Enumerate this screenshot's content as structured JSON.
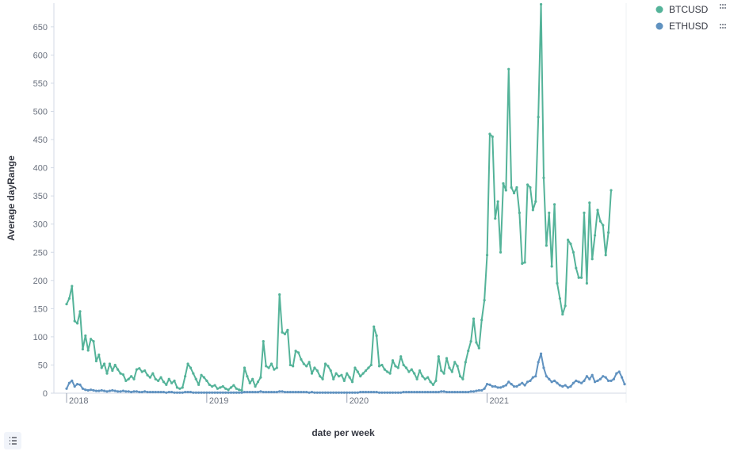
{
  "chart_data": {
    "type": "line",
    "x_label": "date per week",
    "y_label": "Average dayRange",
    "categories": [
      "2018",
      null,
      null,
      null,
      null,
      null,
      null,
      null,
      null,
      null,
      null,
      null,
      null,
      null,
      null,
      null,
      null,
      null,
      null,
      null,
      null,
      null,
      null,
      null,
      null,
      null,
      null,
      null,
      null,
      null,
      null,
      null,
      null,
      null,
      null,
      null,
      null,
      null,
      null,
      null,
      null,
      null,
      null,
      null,
      null,
      null,
      null,
      null,
      null,
      null,
      null,
      null,
      "2019",
      null,
      null,
      null,
      null,
      null,
      null,
      null,
      null,
      null,
      null,
      null,
      null,
      null,
      null,
      null,
      null,
      null,
      null,
      null,
      null,
      null,
      null,
      null,
      null,
      null,
      null,
      null,
      null,
      null,
      null,
      null,
      null,
      null,
      null,
      null,
      null,
      null,
      null,
      null,
      null,
      null,
      null,
      null,
      null,
      null,
      null,
      null,
      null,
      null,
      null,
      null,
      "2020",
      null,
      null,
      null,
      null,
      null,
      null,
      null,
      null,
      null,
      null,
      null,
      null,
      null,
      null,
      null,
      null,
      null,
      null,
      null,
      null,
      null,
      null,
      null,
      null,
      null,
      null,
      null,
      null,
      null,
      null,
      null,
      null,
      null,
      null,
      null,
      null,
      null,
      null,
      null,
      null,
      null,
      null,
      null,
      null,
      null,
      null,
      null,
      null,
      null,
      null,
      null,
      "2021",
      null,
      null,
      null,
      null,
      null,
      null,
      null,
      null,
      null,
      null,
      null,
      null,
      null,
      null,
      null,
      null,
      null,
      null,
      null,
      null,
      null,
      null,
      null,
      null,
      null,
      null,
      null,
      null,
      null,
      null,
      null,
      null,
      null,
      null,
      null,
      null,
      null,
      null,
      null,
      null,
      null,
      null,
      null,
      null,
      null,
      null,
      null,
      null,
      null,
      null,
      null
    ],
    "series": [
      {
        "name": "BTCUSD",
        "color": "#54b399",
        "values": [
          158,
          168,
          190,
          128,
          124,
          145,
          78,
          102,
          76,
          96,
          92,
          57,
          68,
          45,
          52,
          35,
          52,
          40,
          50,
          42,
          35,
          33,
          22,
          25,
          30,
          25,
          42,
          44,
          38,
          40,
          32,
          28,
          35,
          25,
          22,
          28,
          20,
          15,
          25,
          18,
          22,
          10,
          8,
          10,
          30,
          52,
          45,
          35,
          25,
          15,
          32,
          28,
          22,
          15,
          12,
          14,
          8,
          10,
          12,
          8,
          6,
          10,
          14,
          8,
          6,
          5,
          45,
          30,
          18,
          25,
          12,
          20,
          28,
          92,
          48,
          45,
          52,
          42,
          45,
          175,
          108,
          105,
          112,
          50,
          48,
          75,
          72,
          60,
          52,
          48,
          55,
          35,
          45,
          40,
          30,
          25,
          52,
          48,
          40,
          25,
          35,
          30,
          32,
          22,
          35,
          28,
          20,
          45,
          38,
          30,
          35,
          40,
          45,
          50,
          118,
          102,
          48,
          50,
          42,
          38,
          35,
          58,
          48,
          45,
          65,
          50,
          45,
          38,
          42,
          35,
          25,
          40,
          30,
          25,
          28,
          20,
          15,
          22,
          65,
          40,
          35,
          62,
          45,
          38,
          55,
          48,
          30,
          25,
          55,
          75,
          92,
          132,
          90,
          80,
          130,
          165,
          245,
          460,
          455,
          310,
          340,
          250,
          372,
          360,
          575,
          365,
          355,
          365,
          320,
          230,
          232,
          370,
          365,
          325,
          340,
          490,
          690,
          382,
          262,
          320,
          225,
          335,
          195,
          168,
          140,
          155,
          272,
          265,
          250,
          222,
          205,
          205,
          320,
          195,
          338,
          238,
          280,
          325,
          305,
          298,
          245,
          285,
          360,
          null,
          null,
          null,
          null,
          null
        ]
      },
      {
        "name": "ETHUSD",
        "color": "#6092c0",
        "values": [
          8,
          18,
          22,
          12,
          16,
          15,
          8,
          6,
          5,
          6,
          5,
          4,
          4,
          5,
          4,
          3,
          4,
          5,
          4,
          3,
          3,
          4,
          3,
          3,
          2,
          3,
          3,
          2,
          2,
          3,
          2,
          2,
          2,
          2,
          2,
          2,
          2,
          1,
          2,
          2,
          1,
          1,
          1,
          1,
          2,
          2,
          2,
          1,
          1,
          1,
          1,
          1,
          1,
          1,
          1,
          1,
          1,
          1,
          1,
          1,
          1,
          1,
          1,
          1,
          1,
          1,
          2,
          2,
          2,
          2,
          2,
          2,
          3,
          2,
          2,
          2,
          2,
          2,
          2,
          3,
          3,
          2,
          2,
          2,
          2,
          2,
          2,
          2,
          2,
          2,
          1,
          2,
          1,
          1,
          1,
          1,
          1,
          1,
          1,
          1,
          1,
          1,
          1,
          1,
          1,
          1,
          1,
          1,
          1,
          2,
          2,
          2,
          2,
          2,
          2,
          2,
          1,
          1,
          1,
          1,
          1,
          1,
          1,
          1,
          1,
          2,
          2,
          2,
          2,
          2,
          2,
          2,
          2,
          2,
          2,
          2,
          2,
          2,
          2,
          3,
          3,
          2,
          2,
          2,
          2,
          2,
          2,
          2,
          2,
          2,
          3,
          3,
          4,
          5,
          5,
          8,
          16,
          15,
          12,
          12,
          10,
          10,
          12,
          14,
          20,
          16,
          12,
          12,
          15,
          18,
          14,
          20,
          22,
          28,
          30,
          55,
          70,
          45,
          30,
          25,
          20,
          22,
          18,
          14,
          12,
          14,
          10,
          12,
          18,
          22,
          20,
          18,
          22,
          30,
          25,
          32,
          20,
          22,
          25,
          30,
          28,
          22,
          22,
          25,
          35,
          38,
          28,
          16
        ]
      }
    ],
    "ylim": [
      0,
      692
    ],
    "yticks": [
      0,
      50,
      100,
      150,
      200,
      250,
      300,
      350,
      400,
      450,
      500,
      550,
      600,
      650
    ],
    "legend": "top-right"
  }
}
